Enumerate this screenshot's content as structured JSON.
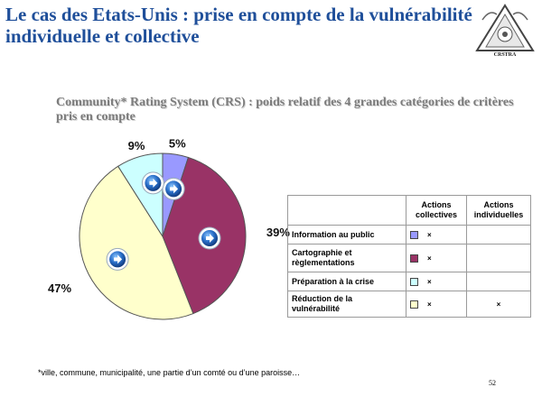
{
  "slide": {
    "title": "Le cas des Etats-Unis : prise en compte de la vulnérabilité individuelle et collective",
    "org_name": "CRSTRA",
    "page_number": "52",
    "footnote": "*ville, commune, municipalité, une partie d’un comté ou d’une paroisse…"
  },
  "chart_data": {
    "type": "pie",
    "title": "Community* Rating System (CRS) : poids relatif des 4 grandes catégories de critères pris en compte",
    "slices": [
      {
        "label": "5%",
        "value": 5,
        "color": "#9999ff"
      },
      {
        "label": "39%",
        "value": 39,
        "color": "#993366"
      },
      {
        "label": "47%",
        "value": 47,
        "color": "#ffffcc"
      },
      {
        "label": "9%",
        "value": 9,
        "color": "#ccffff"
      }
    ],
    "start_angle_deg": 0,
    "direction": "clockwise"
  },
  "table": {
    "headers": [
      "",
      "Actions collectives",
      "Actions individuelles"
    ],
    "rows": [
      {
        "label": "Information au public",
        "color": "#9999ff",
        "collective": "×",
        "individual": ""
      },
      {
        "label": "Cartographie et règlementations",
        "color": "#993366",
        "collective": "×",
        "individual": ""
      },
      {
        "label": "Préparation à la crise",
        "color": "#ccffff",
        "collective": "×",
        "individual": ""
      },
      {
        "label": "Réduction de la vulnérabilité",
        "color": "#ffffcc",
        "collective": "×",
        "individual": "×"
      }
    ]
  },
  "icons": {
    "logo": "crstra-logo",
    "arrow": "arrow-circle-icon"
  }
}
